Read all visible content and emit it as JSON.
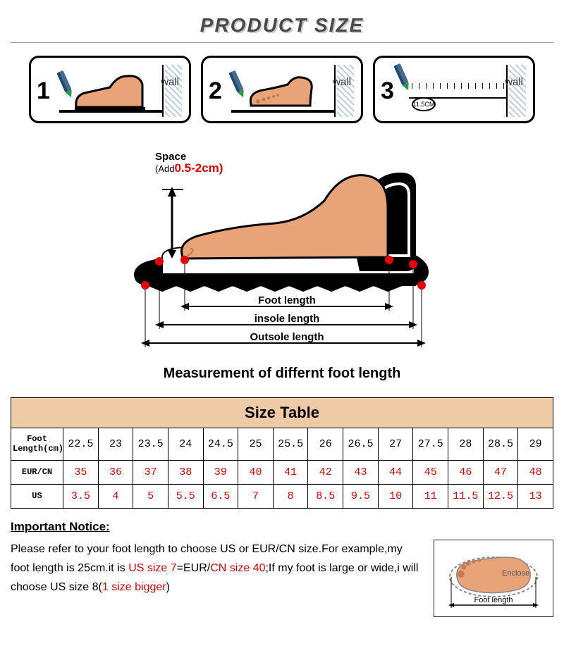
{
  "title": "PRODUCT SIZE",
  "steps": {
    "wall_label": "wall",
    "ruler_example": "11.5CM",
    "nums": [
      "1",
      "2",
      "3"
    ]
  },
  "diagram": {
    "space_label": "Space",
    "space_sub": "(Add",
    "space_range": "0.5-2cm)",
    "labels": {
      "foot_length": "Foot length",
      "insole_length": "insole length",
      "outsole_length": "Outsole length"
    },
    "caption": "Measurement of differnt foot length"
  },
  "table": {
    "title": "Size  Table",
    "rows": [
      {
        "header": "Foot\nLength(cm)",
        "values": [
          "22.5",
          "23",
          "23.5",
          "24",
          "24.5",
          "25",
          "25.5",
          "26",
          "26.5",
          "27",
          "27.5",
          "28",
          "28.5",
          "29"
        ],
        "color": "#000000"
      },
      {
        "header": "EUR/CN",
        "values": [
          "35",
          "36",
          "37",
          "38",
          "39",
          "40",
          "41",
          "42",
          "43",
          "44",
          "45",
          "46",
          "47",
          "48"
        ],
        "color": "#e60000"
      },
      {
        "header": "US",
        "values": [
          "3.5",
          "4",
          "5",
          "5.5",
          "6.5",
          "7",
          "8",
          "8.5",
          "9.5",
          "10",
          "11",
          "11.5",
          "12.5",
          "13"
        ],
        "color": "#e60000"
      }
    ],
    "col_count": 14,
    "header_bg": "#eecba6"
  },
  "notice": {
    "header": "Important Notice:",
    "line1_a": "Please refer to your foot length to choose US or EUR/CN size.For example,my foot length is 25cm.it is ",
    "line1_red1": "US size 7",
    "line1_b": "=EUR/",
    "line1_red2": "CN size 40",
    "line1_c": ";If my foot is large or wide,i will choose US size 8(",
    "line1_red3": "1 size bigger",
    "line1_d": ")",
    "illus": {
      "enclose": "Enclose",
      "foot_length": "Foot length"
    }
  },
  "colors": {
    "skin": "#e8a478",
    "skin_dark": "#c67a4e",
    "red": "#e60000",
    "header_bg": "#eecba6",
    "wall_hatch": "#7fa6d6"
  }
}
